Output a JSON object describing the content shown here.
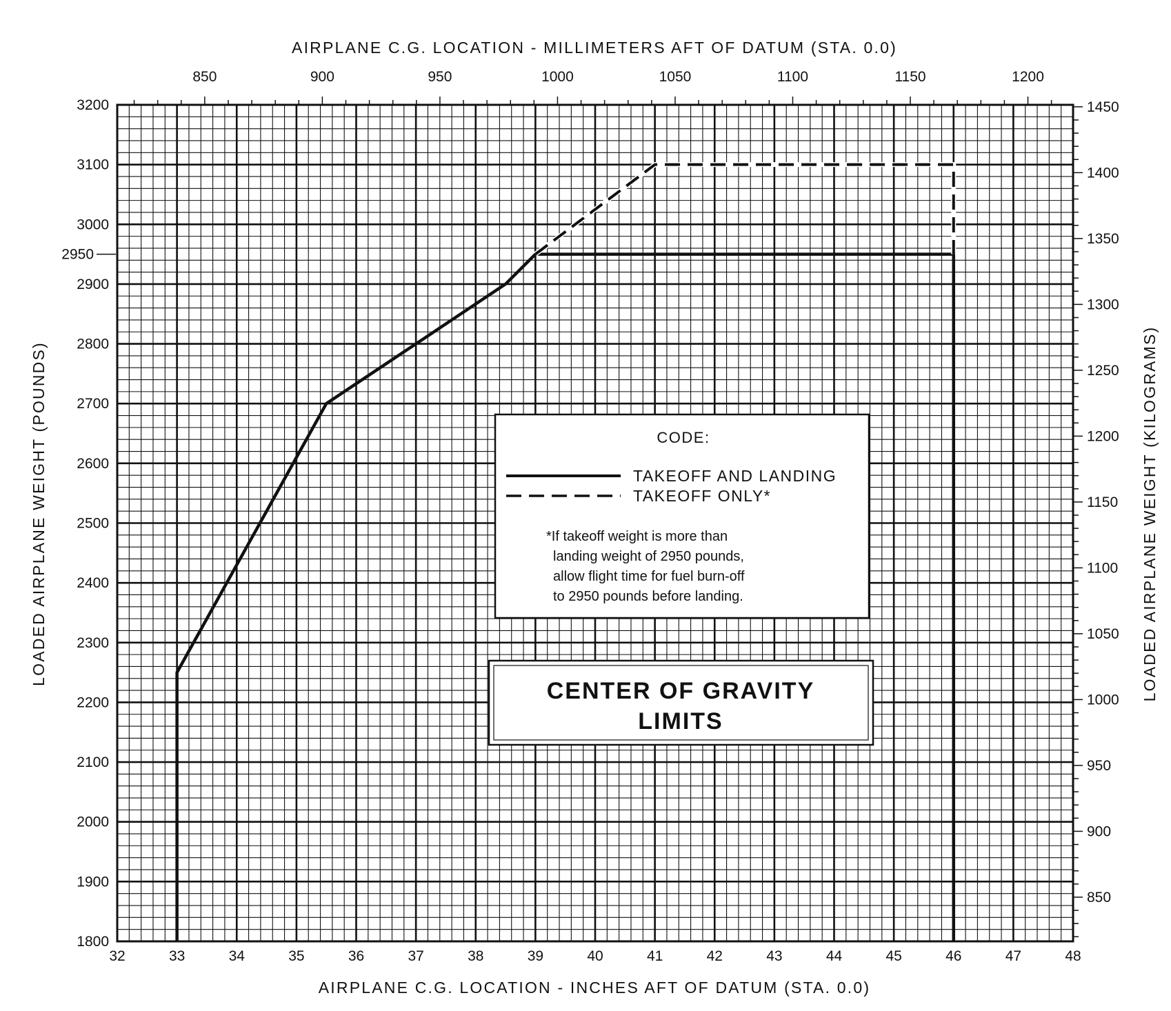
{
  "chart_data": {
    "type": "line",
    "title": "CENTER OF GRAVITY LIMITS",
    "xlabel": "AIRPLANE C.G. LOCATION - INCHES AFT OF DATUM (STA. 0.0)",
    "x2label": "AIRPLANE C.G. LOCATION - MILLIMETERS AFT OF DATUM (STA. 0.0)",
    "ylabel": "LOADED AIRPLANE WEIGHT (POUNDS)",
    "y2label": "LOADED AIRPLANE WEIGHT (KILOGRAMS)",
    "xlim": [
      32,
      48
    ],
    "ylim": [
      1800,
      3200
    ],
    "x_ticks": [
      "32",
      "33",
      "34",
      "35",
      "36",
      "37",
      "38",
      "39",
      "40",
      "41",
      "42",
      "43",
      "44",
      "45",
      "46",
      "47",
      "48"
    ],
    "x2_ticks": [
      {
        "value": 850,
        "label": "850"
      },
      {
        "value": 900,
        "label": "900"
      },
      {
        "value": 950,
        "label": "950"
      },
      {
        "value": 1000,
        "label": "1000"
      },
      {
        "value": 1050,
        "label": "1050"
      },
      {
        "value": 1100,
        "label": "1100"
      },
      {
        "value": 1150,
        "label": "1150"
      },
      {
        "value": 1200,
        "label": "1200"
      }
    ],
    "y_ticks": [
      "1800",
      "1900",
      "2000",
      "2100",
      "2200",
      "2300",
      "2400",
      "2500",
      "2600",
      "2700",
      "2800",
      "2900",
      "3000",
      "3100",
      "3200"
    ],
    "y_extra_tick": {
      "value": 2950,
      "label": "2950"
    },
    "y2_ticks": [
      {
        "value": 850,
        "label": "850"
      },
      {
        "value": 900,
        "label": "900"
      },
      {
        "value": 950,
        "label": "950"
      },
      {
        "value": 1000,
        "label": "1000"
      },
      {
        "value": 1050,
        "label": "1050"
      },
      {
        "value": 1100,
        "label": "1100"
      },
      {
        "value": 1150,
        "label": "1150"
      },
      {
        "value": 1200,
        "label": "1200"
      },
      {
        "value": 1250,
        "label": "1250"
      },
      {
        "value": 1300,
        "label": "1300"
      },
      {
        "value": 1350,
        "label": "1350"
      },
      {
        "value": 1400,
        "label": "1400"
      },
      {
        "value": 1450,
        "label": "1450"
      }
    ],
    "grid": true,
    "series": [
      {
        "name": "TAKEOFF AND LANDING",
        "style": "solid",
        "x": [
          33,
          33,
          35.5,
          37,
          38.5,
          39,
          46,
          46
        ],
        "y": [
          1800,
          2250,
          2700,
          2800,
          2900,
          2950,
          2950,
          1800
        ]
      },
      {
        "name": "TAKEOFF ONLY*",
        "style": "dashed",
        "x": [
          39,
          41,
          46,
          46
        ],
        "y": [
          2950,
          3100,
          3100,
          2950
        ]
      }
    ],
    "legend": {
      "title": "CODE:",
      "placement": "center-right",
      "items": [
        "TAKEOFF AND LANDING",
        "TAKEOFF ONLY*"
      ]
    },
    "note": [
      "*If takeoff weight is more than",
      "landing weight of 2950 pounds,",
      "allow flight time for fuel burn-off",
      "to 2950 pounds before landing."
    ],
    "colors": {
      "ink": "#111111",
      "paper": "#ffffff"
    }
  }
}
